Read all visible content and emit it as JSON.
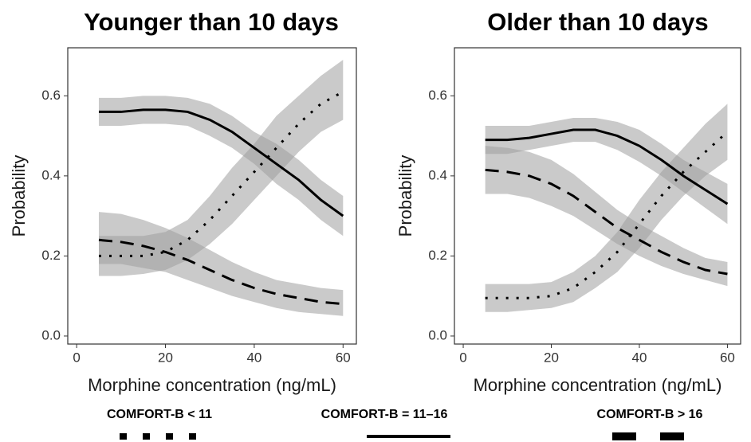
{
  "chart_data": [
    {
      "type": "line",
      "title": "Younger than 10 days",
      "xlabel": "Morphine concentration (ng/mL)",
      "ylabel": "Probability",
      "x": [
        5,
        10,
        15,
        20,
        25,
        30,
        35,
        40,
        45,
        50,
        55,
        60
      ],
      "xlim": [
        -2,
        63
      ],
      "ylim": [
        -0.02,
        0.72
      ],
      "xticks": [
        0,
        20,
        40,
        60
      ],
      "yticks": [
        {
          "value": 0,
          "label": "0.0"
        },
        {
          "value": 0.2,
          "label": "0.2"
        },
        {
          "value": 0.4,
          "label": "0.4"
        },
        {
          "value": 0.6,
          "label": "0.6"
        }
      ],
      "band_color": "#9e9e9e",
      "series": [
        {
          "name": "COMFORT-B < 11",
          "color": "#000000",
          "dash": "dotted",
          "values": [
            0.2,
            0.2,
            0.2,
            0.21,
            0.24,
            0.29,
            0.35,
            0.41,
            0.47,
            0.53,
            0.58,
            0.61
          ],
          "lower": [
            0.15,
            0.15,
            0.155,
            0.165,
            0.19,
            0.23,
            0.28,
            0.34,
            0.4,
            0.46,
            0.51,
            0.54
          ],
          "upper": [
            0.25,
            0.25,
            0.25,
            0.26,
            0.29,
            0.35,
            0.42,
            0.48,
            0.55,
            0.6,
            0.65,
            0.69
          ]
        },
        {
          "name": "COMFORT-B = 11–16",
          "color": "#000000",
          "dash": "solid",
          "values": [
            0.56,
            0.56,
            0.565,
            0.565,
            0.56,
            0.54,
            0.51,
            0.47,
            0.43,
            0.39,
            0.34,
            0.3
          ],
          "lower": [
            0.525,
            0.525,
            0.53,
            0.53,
            0.525,
            0.5,
            0.47,
            0.43,
            0.38,
            0.34,
            0.29,
            0.25
          ],
          "upper": [
            0.595,
            0.595,
            0.6,
            0.6,
            0.595,
            0.58,
            0.55,
            0.51,
            0.48,
            0.44,
            0.39,
            0.35
          ]
        },
        {
          "name": "COMFORT-B > 16",
          "color": "#000000",
          "dash": "dashed",
          "values": [
            0.24,
            0.235,
            0.225,
            0.21,
            0.19,
            0.165,
            0.14,
            0.12,
            0.105,
            0.095,
            0.085,
            0.08
          ],
          "lower": [
            0.18,
            0.18,
            0.17,
            0.16,
            0.14,
            0.12,
            0.1,
            0.085,
            0.07,
            0.06,
            0.055,
            0.05
          ],
          "upper": [
            0.31,
            0.305,
            0.29,
            0.27,
            0.245,
            0.215,
            0.185,
            0.16,
            0.14,
            0.13,
            0.12,
            0.115
          ]
        }
      ]
    },
    {
      "type": "line",
      "title": "Older than 10 days",
      "xlabel": "Morphine concentration (ng/mL)",
      "ylabel": "Probability",
      "x": [
        5,
        10,
        15,
        20,
        25,
        30,
        35,
        40,
        45,
        50,
        55,
        60
      ],
      "xlim": [
        -2,
        63
      ],
      "ylim": [
        -0.02,
        0.72
      ],
      "xticks": [
        0,
        20,
        40,
        60
      ],
      "yticks": [
        {
          "value": 0,
          "label": "0.0"
        },
        {
          "value": 0.2,
          "label": "0.2"
        },
        {
          "value": 0.4,
          "label": "0.4"
        },
        {
          "value": 0.6,
          "label": "0.6"
        }
      ],
      "band_color": "#9e9e9e",
      "series": [
        {
          "name": "COMFORT-B < 11",
          "color": "#000000",
          "dash": "dotted",
          "values": [
            0.095,
            0.095,
            0.095,
            0.1,
            0.12,
            0.16,
            0.21,
            0.28,
            0.35,
            0.41,
            0.46,
            0.51
          ],
          "lower": [
            0.06,
            0.06,
            0.065,
            0.07,
            0.085,
            0.12,
            0.16,
            0.22,
            0.29,
            0.35,
            0.4,
            0.44
          ],
          "upper": [
            0.13,
            0.13,
            0.13,
            0.135,
            0.16,
            0.2,
            0.26,
            0.34,
            0.41,
            0.47,
            0.53,
            0.58
          ]
        },
        {
          "name": "COMFORT-B = 11–16",
          "color": "#000000",
          "dash": "solid",
          "values": [
            0.49,
            0.49,
            0.495,
            0.505,
            0.515,
            0.515,
            0.5,
            0.475,
            0.44,
            0.4,
            0.365,
            0.33
          ],
          "lower": [
            0.455,
            0.455,
            0.465,
            0.475,
            0.485,
            0.485,
            0.465,
            0.435,
            0.4,
            0.36,
            0.32,
            0.28
          ],
          "upper": [
            0.525,
            0.525,
            0.525,
            0.535,
            0.545,
            0.545,
            0.535,
            0.515,
            0.48,
            0.44,
            0.41,
            0.38
          ]
        },
        {
          "name": "COMFORT-B > 16",
          "color": "#000000",
          "dash": "dashed",
          "values": [
            0.415,
            0.41,
            0.4,
            0.38,
            0.35,
            0.31,
            0.27,
            0.24,
            0.21,
            0.185,
            0.165,
            0.155
          ],
          "lower": [
            0.355,
            0.355,
            0.345,
            0.325,
            0.3,
            0.265,
            0.23,
            0.2,
            0.175,
            0.155,
            0.14,
            0.125
          ],
          "upper": [
            0.475,
            0.47,
            0.46,
            0.44,
            0.405,
            0.36,
            0.315,
            0.28,
            0.25,
            0.22,
            0.195,
            0.185
          ]
        }
      ]
    }
  ]
}
